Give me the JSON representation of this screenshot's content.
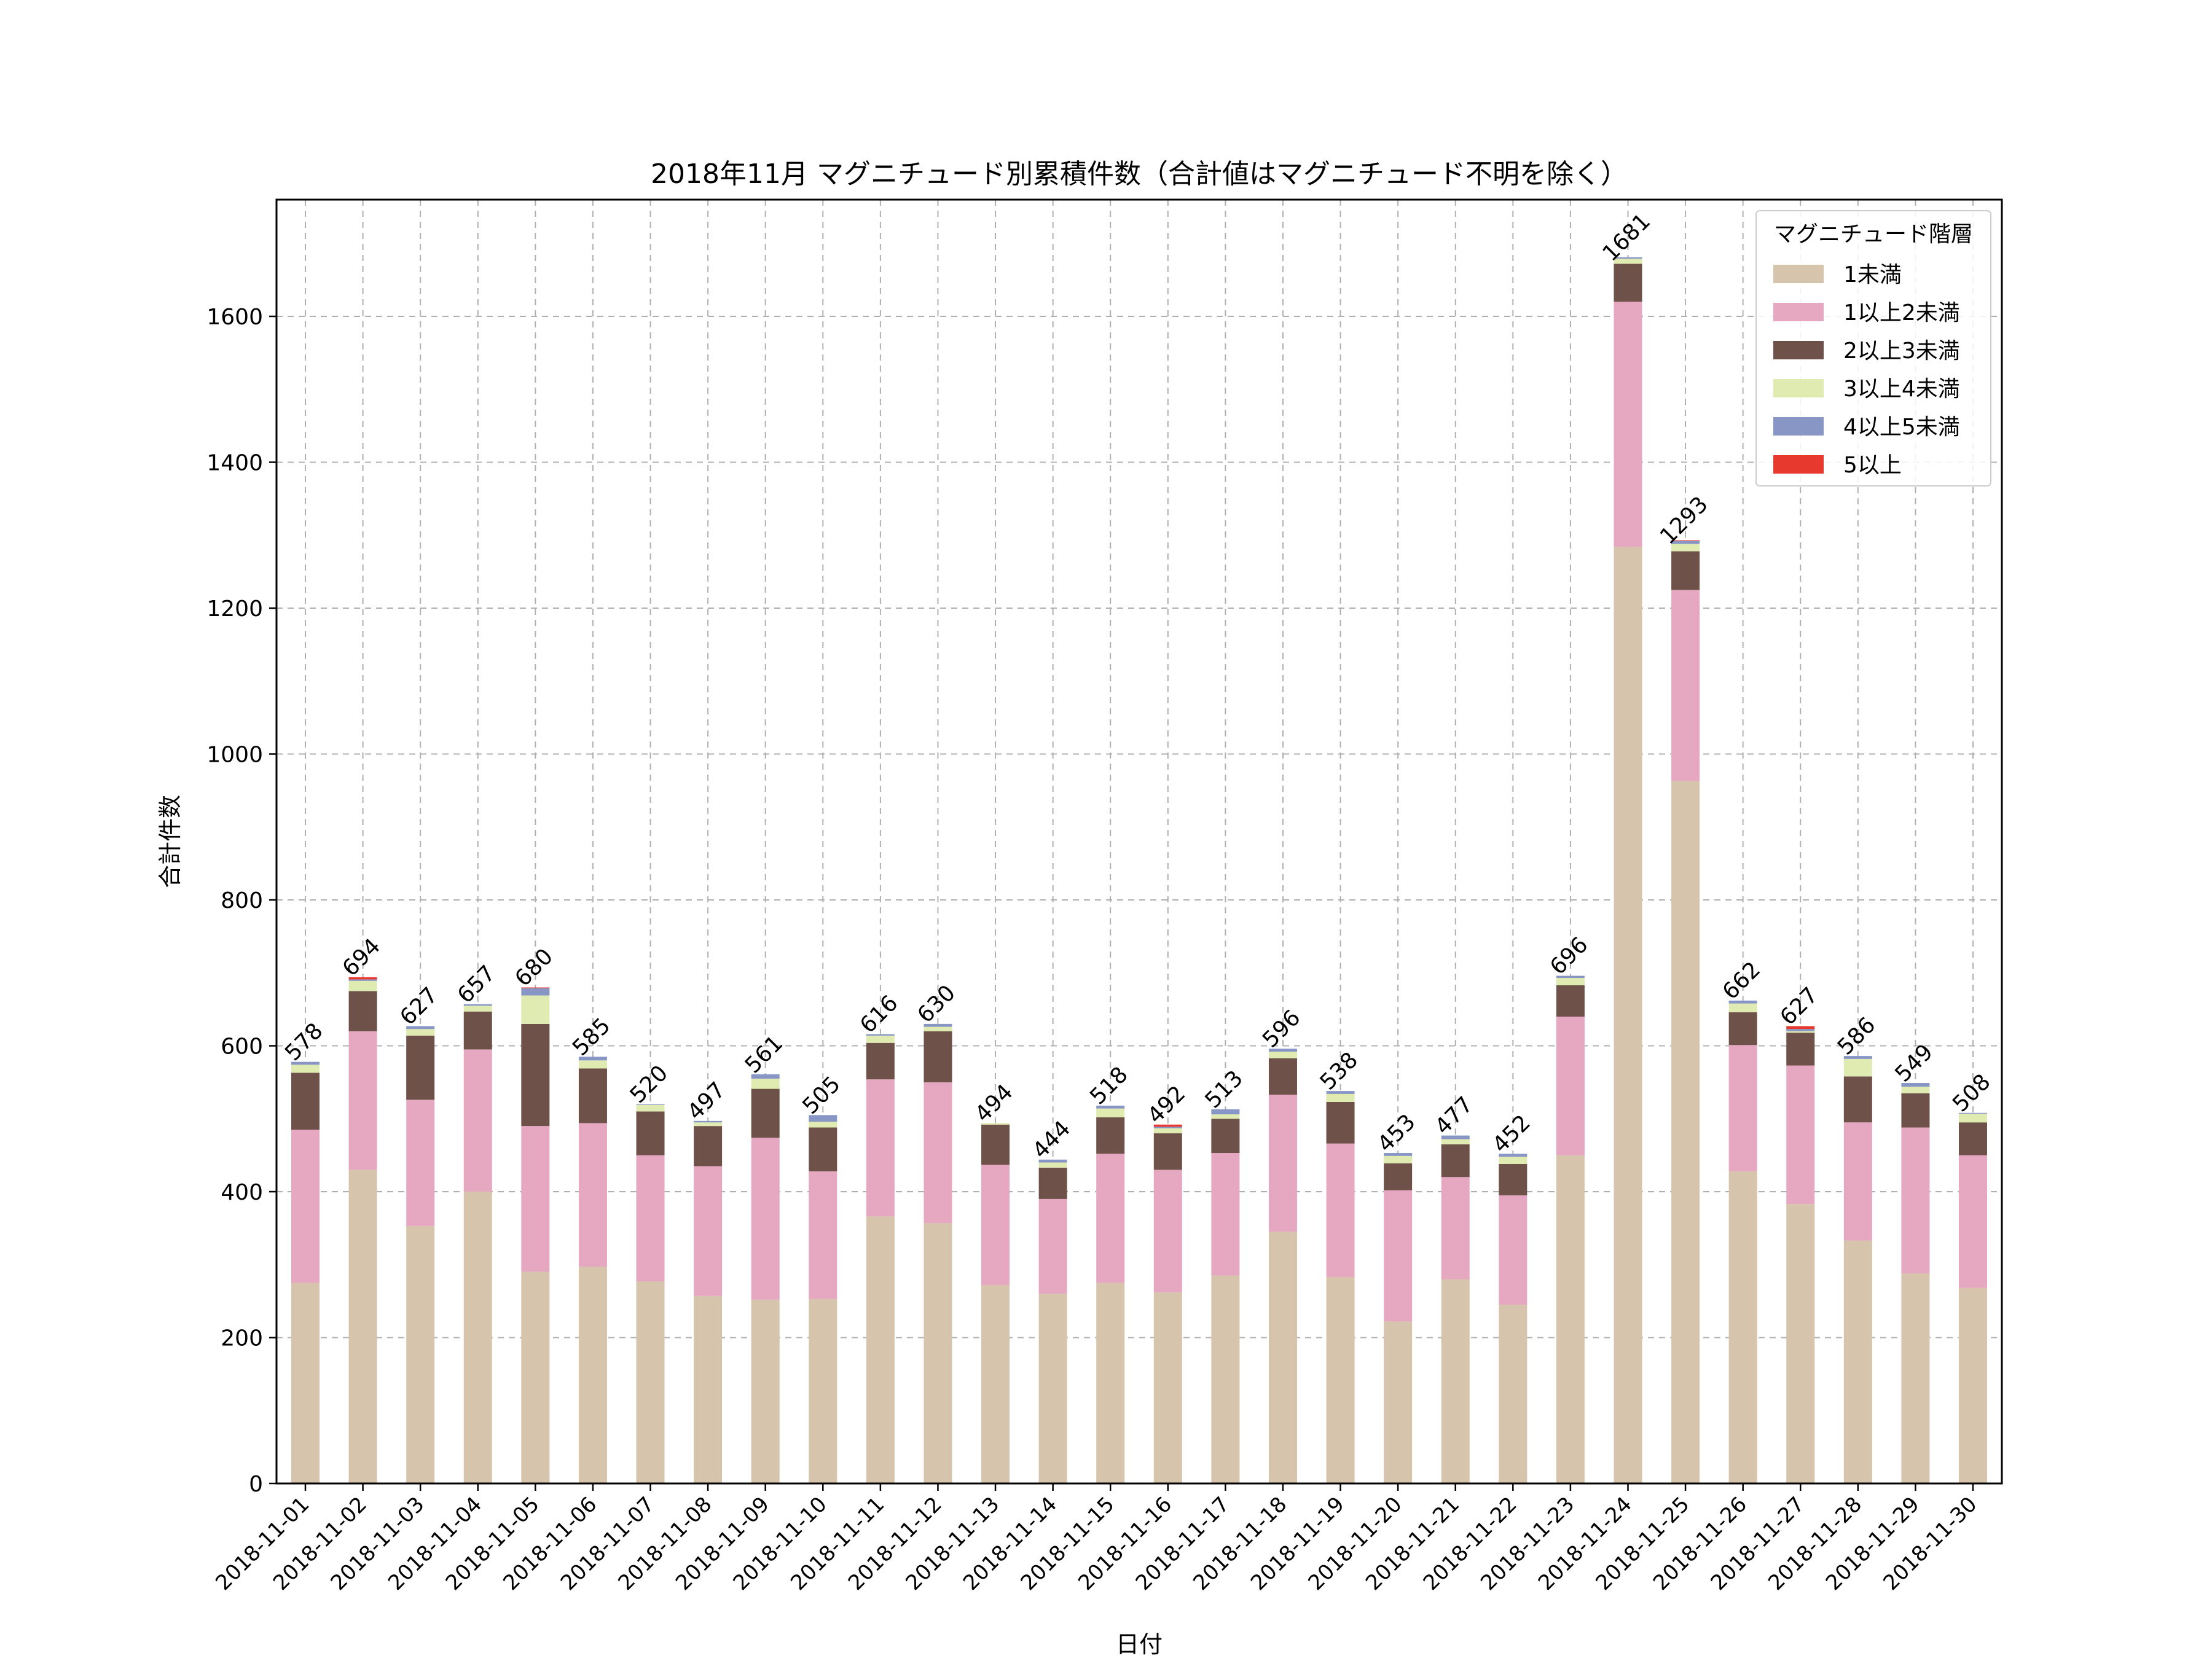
{
  "chart_data": {
    "type": "bar",
    "stacked": true,
    "title": "2018年11月 マグニチュード別累積件数（合計値はマグニチュード不明を除く）",
    "xlabel": "日付",
    "ylabel": "合計件数",
    "ylim": [
      0,
      1760
    ],
    "yticks": [
      0,
      200,
      400,
      600,
      800,
      1000,
      1200,
      1400,
      1600
    ],
    "grid": true,
    "legend": {
      "title": "マグニチュード階層",
      "placement": "top-right"
    },
    "categories": [
      "2018-11-01",
      "2018-11-02",
      "2018-11-03",
      "2018-11-04",
      "2018-11-05",
      "2018-11-06",
      "2018-11-07",
      "2018-11-08",
      "2018-11-09",
      "2018-11-10",
      "2018-11-11",
      "2018-11-12",
      "2018-11-13",
      "2018-11-14",
      "2018-11-15",
      "2018-11-16",
      "2018-11-17",
      "2018-11-18",
      "2018-11-19",
      "2018-11-20",
      "2018-11-21",
      "2018-11-22",
      "2018-11-23",
      "2018-11-24",
      "2018-11-25",
      "2018-11-26",
      "2018-11-27",
      "2018-11-28",
      "2018-11-29",
      "2018-11-30"
    ],
    "series": [
      {
        "name": "1未満",
        "color": "#d7c4ac",
        "values": [
          275,
          430,
          353,
          400,
          290,
          297,
          277,
          257,
          252,
          253,
          366,
          357,
          272,
          260,
          275,
          262,
          285,
          345,
          283,
          222,
          280,
          245,
          450,
          1284,
          963,
          428,
          383,
          333,
          288,
          268
        ]
      },
      {
        "name": "1以上2未満",
        "color": "#e6a8c0",
        "values": [
          210,
          190,
          173,
          195,
          200,
          197,
          173,
          178,
          222,
          175,
          188,
          193,
          165,
          130,
          177,
          168,
          168,
          188,
          183,
          180,
          140,
          150,
          190,
          336,
          262,
          173,
          190,
          162,
          200,
          182
        ]
      },
      {
        "name": "2以上3未満",
        "color": "#6e5149",
        "values": [
          78,
          55,
          88,
          52,
          140,
          75,
          60,
          55,
          67,
          60,
          50,
          70,
          55,
          43,
          50,
          50,
          47,
          50,
          57,
          37,
          45,
          43,
          43,
          52,
          53,
          45,
          45,
          63,
          47,
          45
        ]
      },
      {
        "name": "3以上4未満",
        "color": "#dfebb0",
        "values": [
          11,
          14,
          9,
          8,
          39,
          11,
          9,
          5,
          14,
          8,
          10,
          6,
          2,
          7,
          12,
          7,
          6,
          9,
          11,
          10,
          7,
          10,
          10,
          7,
          10,
          12,
          2,
          24,
          9,
          12
        ]
      },
      {
        "name": "4以上5未満",
        "color": "#8896c6",
        "values": [
          4,
          2,
          4,
          2,
          10,
          5,
          1,
          2,
          6,
          9,
          2,
          4,
          0,
          4,
          4,
          2,
          7,
          4,
          4,
          4,
          5,
          4,
          3,
          2,
          4,
          4,
          3,
          4,
          5,
          1
        ]
      },
      {
        "name": "5以上",
        "color": "#e8392f",
        "values": [
          0,
          3,
          0,
          0,
          1,
          0,
          0,
          0,
          0,
          0,
          0,
          0,
          0,
          0,
          0,
          3,
          0,
          0,
          0,
          0,
          0,
          0,
          0,
          0,
          1,
          0,
          4,
          0,
          0,
          0
        ]
      }
    ],
    "totals": [
      578,
      694,
      627,
      657,
      680,
      585,
      520,
      497,
      561,
      505,
      616,
      630,
      494,
      444,
      518,
      492,
      513,
      596,
      538,
      453,
      477,
      452,
      696,
      1681,
      1293,
      662,
      627,
      586,
      549,
      508
    ]
  }
}
